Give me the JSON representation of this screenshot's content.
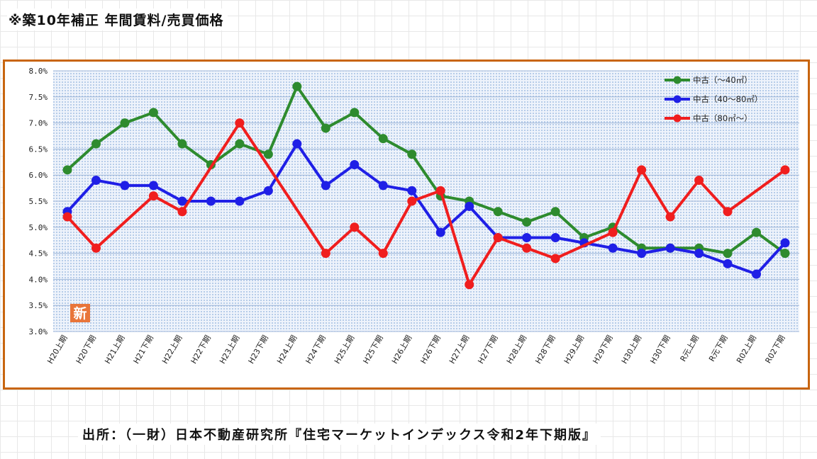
{
  "header": {
    "title": "※築10年補正 年間賃料/売買価格"
  },
  "footer": {
    "source": "出所：（一財）日本不動産研究所『住宅マーケットインデックス令和2年下期版』"
  },
  "colors": {
    "frame": "#c8650f",
    "plot_bg": "#dfe9f7",
    "green": "#2e8b2e",
    "blue": "#1f1fe6",
    "red": "#f01e1e"
  },
  "badge": {
    "text": "新",
    "color": "#e8753a"
  },
  "chart_data": {
    "type": "line",
    "categories": [
      "H20上期",
      "H20下期",
      "H21上期",
      "H21下期",
      "H22上期",
      "H22下期",
      "H23上期",
      "H23下期",
      "H24上期",
      "H24下期",
      "H25上期",
      "H25下期",
      "H26上期",
      "H26下期",
      "H27上期",
      "H27下期",
      "H28上期",
      "H28下期",
      "H29上期",
      "H29下期",
      "H30上期",
      "H30下期",
      "R元上期",
      "R元下期",
      "R02上期",
      "R02下期"
    ],
    "yticks": [
      "8.0%",
      "7.5%",
      "7.0%",
      "6.5%",
      "6.0%",
      "5.5%",
      "5.0%",
      "4.5%",
      "4.0%",
      "3.5%",
      "3.0%"
    ],
    "ylim": [
      3.0,
      8.0
    ],
    "legend_position": "top-right",
    "series": [
      {
        "name": "中古（～40㎡）",
        "color": "#2e8b2e",
        "values": [
          6.1,
          6.6,
          7.0,
          7.2,
          6.6,
          6.2,
          6.6,
          6.4,
          7.7,
          6.9,
          7.2,
          6.7,
          6.4,
          5.6,
          5.5,
          5.3,
          5.1,
          5.3,
          4.8,
          5.0,
          4.6,
          4.6,
          4.6,
          4.5,
          4.9,
          4.5
        ]
      },
      {
        "name": "中古（40～80㎡）",
        "color": "#1f1fe6",
        "values": [
          5.3,
          5.9,
          5.8,
          5.8,
          5.5,
          5.5,
          5.5,
          5.7,
          6.6,
          5.8,
          6.2,
          5.8,
          5.7,
          4.9,
          5.4,
          4.8,
          4.8,
          4.8,
          4.7,
          4.6,
          4.5,
          4.6,
          4.5,
          4.3,
          4.1,
          4.7
        ]
      },
      {
        "name": "中古（80㎡～）",
        "color": "#f01e1e",
        "values": [
          5.2,
          4.6,
          null,
          5.6,
          5.3,
          null,
          7.0,
          null,
          null,
          4.5,
          5.0,
          4.5,
          5.5,
          5.7,
          3.9,
          4.8,
          4.6,
          4.4,
          null,
          4.9,
          6.1,
          5.2,
          5.9,
          5.3,
          null,
          6.1
        ]
      }
    ]
  }
}
